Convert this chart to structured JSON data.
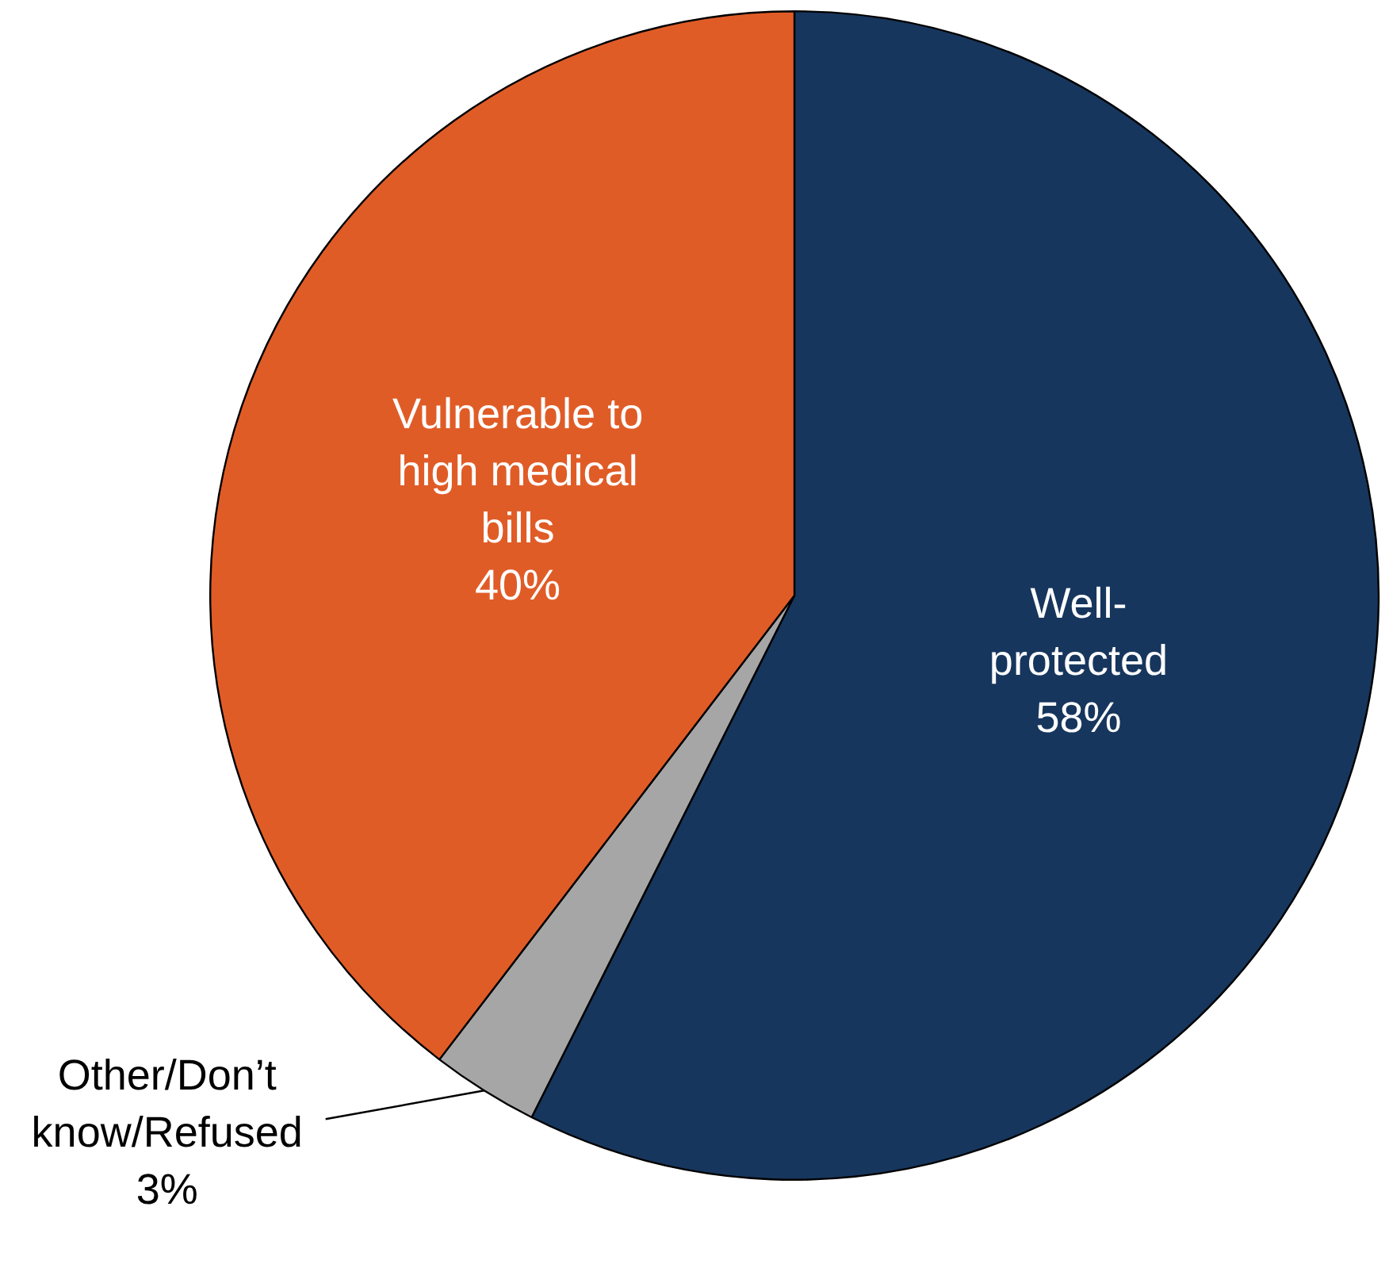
{
  "chart_data": {
    "type": "pie",
    "categories": [
      "Well-protected",
      "Other/Don’t know/Refused",
      "Vulnerable to high medical bills"
    ],
    "values": [
      58,
      3,
      40
    ],
    "value_labels": [
      "58%",
      "3%",
      "40%"
    ],
    "colors": [
      "#17365d",
      "#a6a6a6",
      "#e05c27"
    ],
    "legend": false
  }
}
